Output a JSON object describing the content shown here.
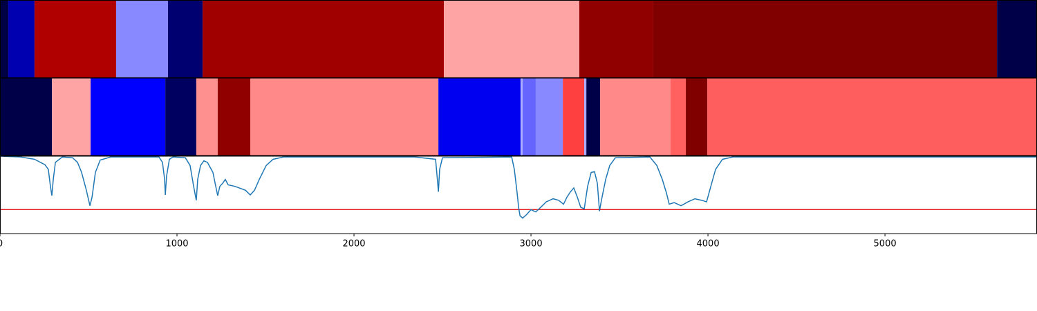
{
  "chart_data": [
    {
      "type": "segments",
      "xlim": [
        0,
        5859
      ],
      "edges": [
        0,
        47,
        195,
        656,
        949,
        1145,
        2508,
        3273,
        3691,
        5633,
        5859
      ],
      "colors": [
        "#000044",
        "#0000b0",
        "#b00000",
        "#8888ff",
        "#000070",
        "#a00000",
        "#ffa4a4",
        "#900000",
        "#800000",
        "#000048"
      ]
    },
    {
      "type": "segments",
      "xlim": [
        0,
        5859
      ],
      "edges": [
        0,
        293,
        512,
        934,
        1109,
        1230,
        1414,
        2477,
        2941,
        2953,
        3027,
        3180,
        3301,
        3313,
        3391,
        3789,
        3875,
        3996,
        5859
      ],
      "colors": [
        "#000048",
        "#ffa4a4",
        "#0000ff",
        "#000060",
        "#ff9090",
        "#900000",
        "#ff8888",
        "#0000f0",
        "#aaaaff",
        "#6666ff",
        "#8888ff",
        "#ff4040",
        "#aaaaff",
        "#000048",
        "#ff8888",
        "#ff6060",
        "#800000",
        "#ff5e5e"
      ]
    },
    {
      "type": "line",
      "xlim": [
        0,
        5859
      ],
      "ylim": [
        0,
        1
      ],
      "xticks": [
        0,
        1000,
        2000,
        3000,
        4000,
        5000
      ],
      "color": "#1f77b4",
      "hline": {
        "value": 0.31,
        "color": "#e41a1c"
      },
      "x": [
        0,
        117,
        195,
        254,
        273,
        285,
        293,
        301,
        313,
        352,
        410,
        438,
        461,
        488,
        508,
        520,
        539,
        566,
        625,
        898,
        918,
        930,
        934,
        941,
        957,
        977,
        1047,
        1074,
        1094,
        1109,
        1117,
        1133,
        1152,
        1172,
        1203,
        1219,
        1230,
        1242,
        1258,
        1273,
        1289,
        1328,
        1387,
        1414,
        1438,
        1465,
        1504,
        1543,
        1602,
        2344,
        2461,
        2473,
        2477,
        2484,
        2500,
        2891,
        2906,
        2922,
        2930,
        2938,
        2953,
        2977,
        3000,
        3027,
        3055,
        3086,
        3125,
        3156,
        3184,
        3203,
        3223,
        3242,
        3262,
        3281,
        3301,
        3320,
        3340,
        3359,
        3375,
        3387,
        3398,
        3422,
        3445,
        3477,
        3672,
        3711,
        3742,
        3766,
        3781,
        3809,
        3848,
        3887,
        3926,
        3965,
        3992,
        4016,
        4043,
        4082,
        4141,
        5859
      ],
      "values": [
        1.0,
        0.99,
        0.96,
        0.89,
        0.83,
        0.61,
        0.49,
        0.7,
        0.92,
        0.99,
        0.98,
        0.92,
        0.79,
        0.56,
        0.36,
        0.47,
        0.79,
        0.95,
        0.99,
        0.99,
        0.92,
        0.7,
        0.5,
        0.74,
        0.96,
        0.99,
        0.98,
        0.88,
        0.61,
        0.43,
        0.7,
        0.88,
        0.94,
        0.92,
        0.79,
        0.61,
        0.49,
        0.61,
        0.65,
        0.7,
        0.63,
        0.61,
        0.56,
        0.5,
        0.56,
        0.7,
        0.88,
        0.96,
        0.99,
        0.99,
        0.96,
        0.65,
        0.54,
        0.83,
        0.98,
        0.99,
        0.83,
        0.52,
        0.34,
        0.23,
        0.2,
        0.25,
        0.31,
        0.28,
        0.34,
        0.41,
        0.45,
        0.43,
        0.38,
        0.47,
        0.54,
        0.59,
        0.47,
        0.34,
        0.32,
        0.61,
        0.79,
        0.8,
        0.65,
        0.29,
        0.43,
        0.7,
        0.88,
        0.98,
        0.99,
        0.88,
        0.7,
        0.52,
        0.38,
        0.4,
        0.36,
        0.41,
        0.45,
        0.43,
        0.41,
        0.61,
        0.83,
        0.96,
        0.99,
        0.99
      ]
    }
  ]
}
